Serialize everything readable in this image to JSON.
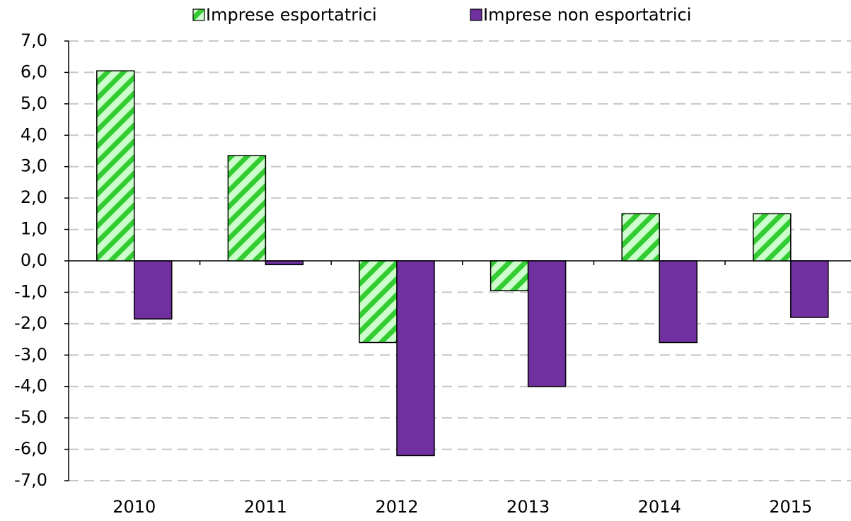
{
  "chart_data": {
    "type": "bar",
    "categories": [
      "2010",
      "2011",
      "2012",
      "2013",
      "2014",
      "2015"
    ],
    "series": [
      {
        "name": "Imprese esportatrici",
        "color": "#33cc33",
        "values": [
          6.05,
          3.35,
          -2.6,
          -0.95,
          1.5,
          1.5
        ]
      },
      {
        "name": "Imprese non esportatrici",
        "color": "#7030a0",
        "values": [
          -1.85,
          -0.12,
          -6.2,
          -4.0,
          -2.6,
          -1.8
        ]
      }
    ],
    "ylim": [
      -7,
      7
    ],
    "yticks": [
      {
        "value": 7,
        "label": "7,0"
      },
      {
        "value": 6,
        "label": "6,0"
      },
      {
        "value": 5,
        "label": "5,0"
      },
      {
        "value": 4,
        "label": "4,0"
      },
      {
        "value": 3,
        "label": "3,0"
      },
      {
        "value": 2,
        "label": "2,0"
      },
      {
        "value": 1,
        "label": "1,0"
      },
      {
        "value": 0,
        "label": "0,0"
      },
      {
        "value": -1,
        "label": "-1,0"
      },
      {
        "value": -2,
        "label": "-2,0"
      },
      {
        "value": -3,
        "label": "-3,0"
      },
      {
        "value": -4,
        "label": "-4,0"
      },
      {
        "value": -5,
        "label": "-5,0"
      },
      {
        "value": -6,
        "label": "-6,0"
      },
      {
        "value": -7,
        "label": "-7,0"
      }
    ],
    "grid": true,
    "legend": "top"
  }
}
